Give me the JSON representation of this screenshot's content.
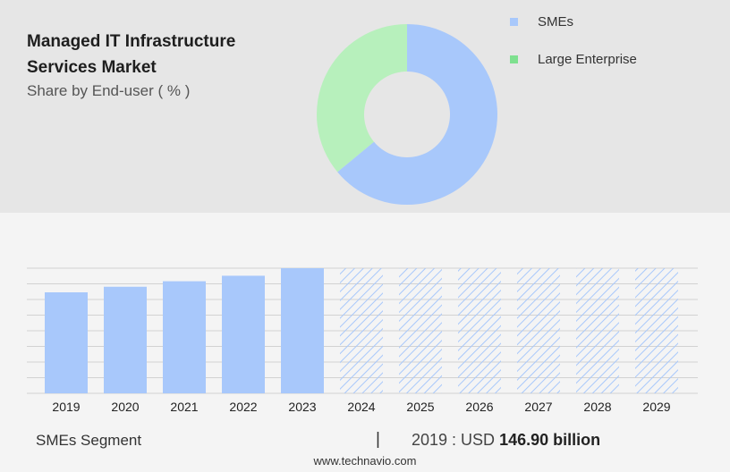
{
  "header": {
    "title_line1": "Managed IT Infrastructure",
    "title_line2": "Services Market",
    "subtitle": "Share by End-user ( % )"
  },
  "legend": {
    "items": [
      {
        "label": "SMEs",
        "color": "#a8c8fb"
      },
      {
        "label": "Large Enterprise",
        "color": "#7ee08f"
      }
    ]
  },
  "chart_data": [
    {
      "type": "pie",
      "variant": "donut",
      "categories": [
        "SMEs",
        "Large Enterprise"
      ],
      "values": [
        64,
        36
      ],
      "colors": [
        "#a8c8fb",
        "#b7f0bc"
      ]
    },
    {
      "type": "bar",
      "categories": [
        "2019",
        "2020",
        "2021",
        "2022",
        "2023",
        "2024",
        "2025",
        "2026",
        "2027",
        "2028",
        "2029"
      ],
      "values": [
        146.9,
        155,
        163,
        171,
        182,
        null,
        null,
        null,
        null,
        null,
        null
      ],
      "forecast_from": "2024",
      "ylim": [
        0,
        182
      ],
      "grid": true,
      "bar_color": "#a8c8fb"
    }
  ],
  "footer": {
    "segment": "SMEs Segment",
    "separator": "|",
    "year_label": "2019 : USD",
    "value": "146.90 billion",
    "source": "www.technavio.com"
  }
}
